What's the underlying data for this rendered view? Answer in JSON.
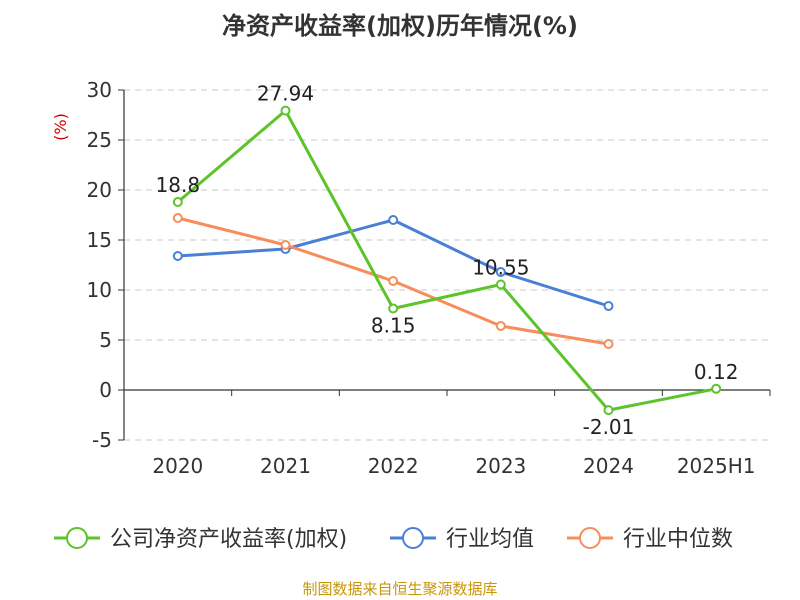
{
  "chart_data": {
    "type": "line",
    "title": "净资产收益率(加权)历年情况(%)",
    "ylabel": "(%)",
    "categories": [
      "2020",
      "2021",
      "2022",
      "2023",
      "2024",
      "2025H1"
    ],
    "ylim": [
      -5,
      30
    ],
    "yticks": [
      -5,
      0,
      5,
      10,
      15,
      20,
      25,
      30
    ],
    "grid": true,
    "legend_position": "bottom",
    "series": [
      {
        "name": "公司净资产收益率(加权)",
        "color": "#5cc32a",
        "values": [
          18.8,
          27.94,
          8.15,
          10.55,
          -2.01,
          0.12
        ],
        "labels": [
          "18.8",
          "27.94",
          "8.15",
          "10.55",
          "-2.01",
          "0.12"
        ]
      },
      {
        "name": "行业均值",
        "color": "#4a7fd8",
        "values": [
          13.4,
          14.1,
          17.0,
          11.8,
          8.4,
          null
        ]
      },
      {
        "name": "行业中位数",
        "color": "#f78d58",
        "values": [
          17.2,
          14.5,
          10.9,
          6.4,
          4.6,
          null
        ]
      }
    ],
    "source": "制图数据来自恒生聚源数据库"
  }
}
